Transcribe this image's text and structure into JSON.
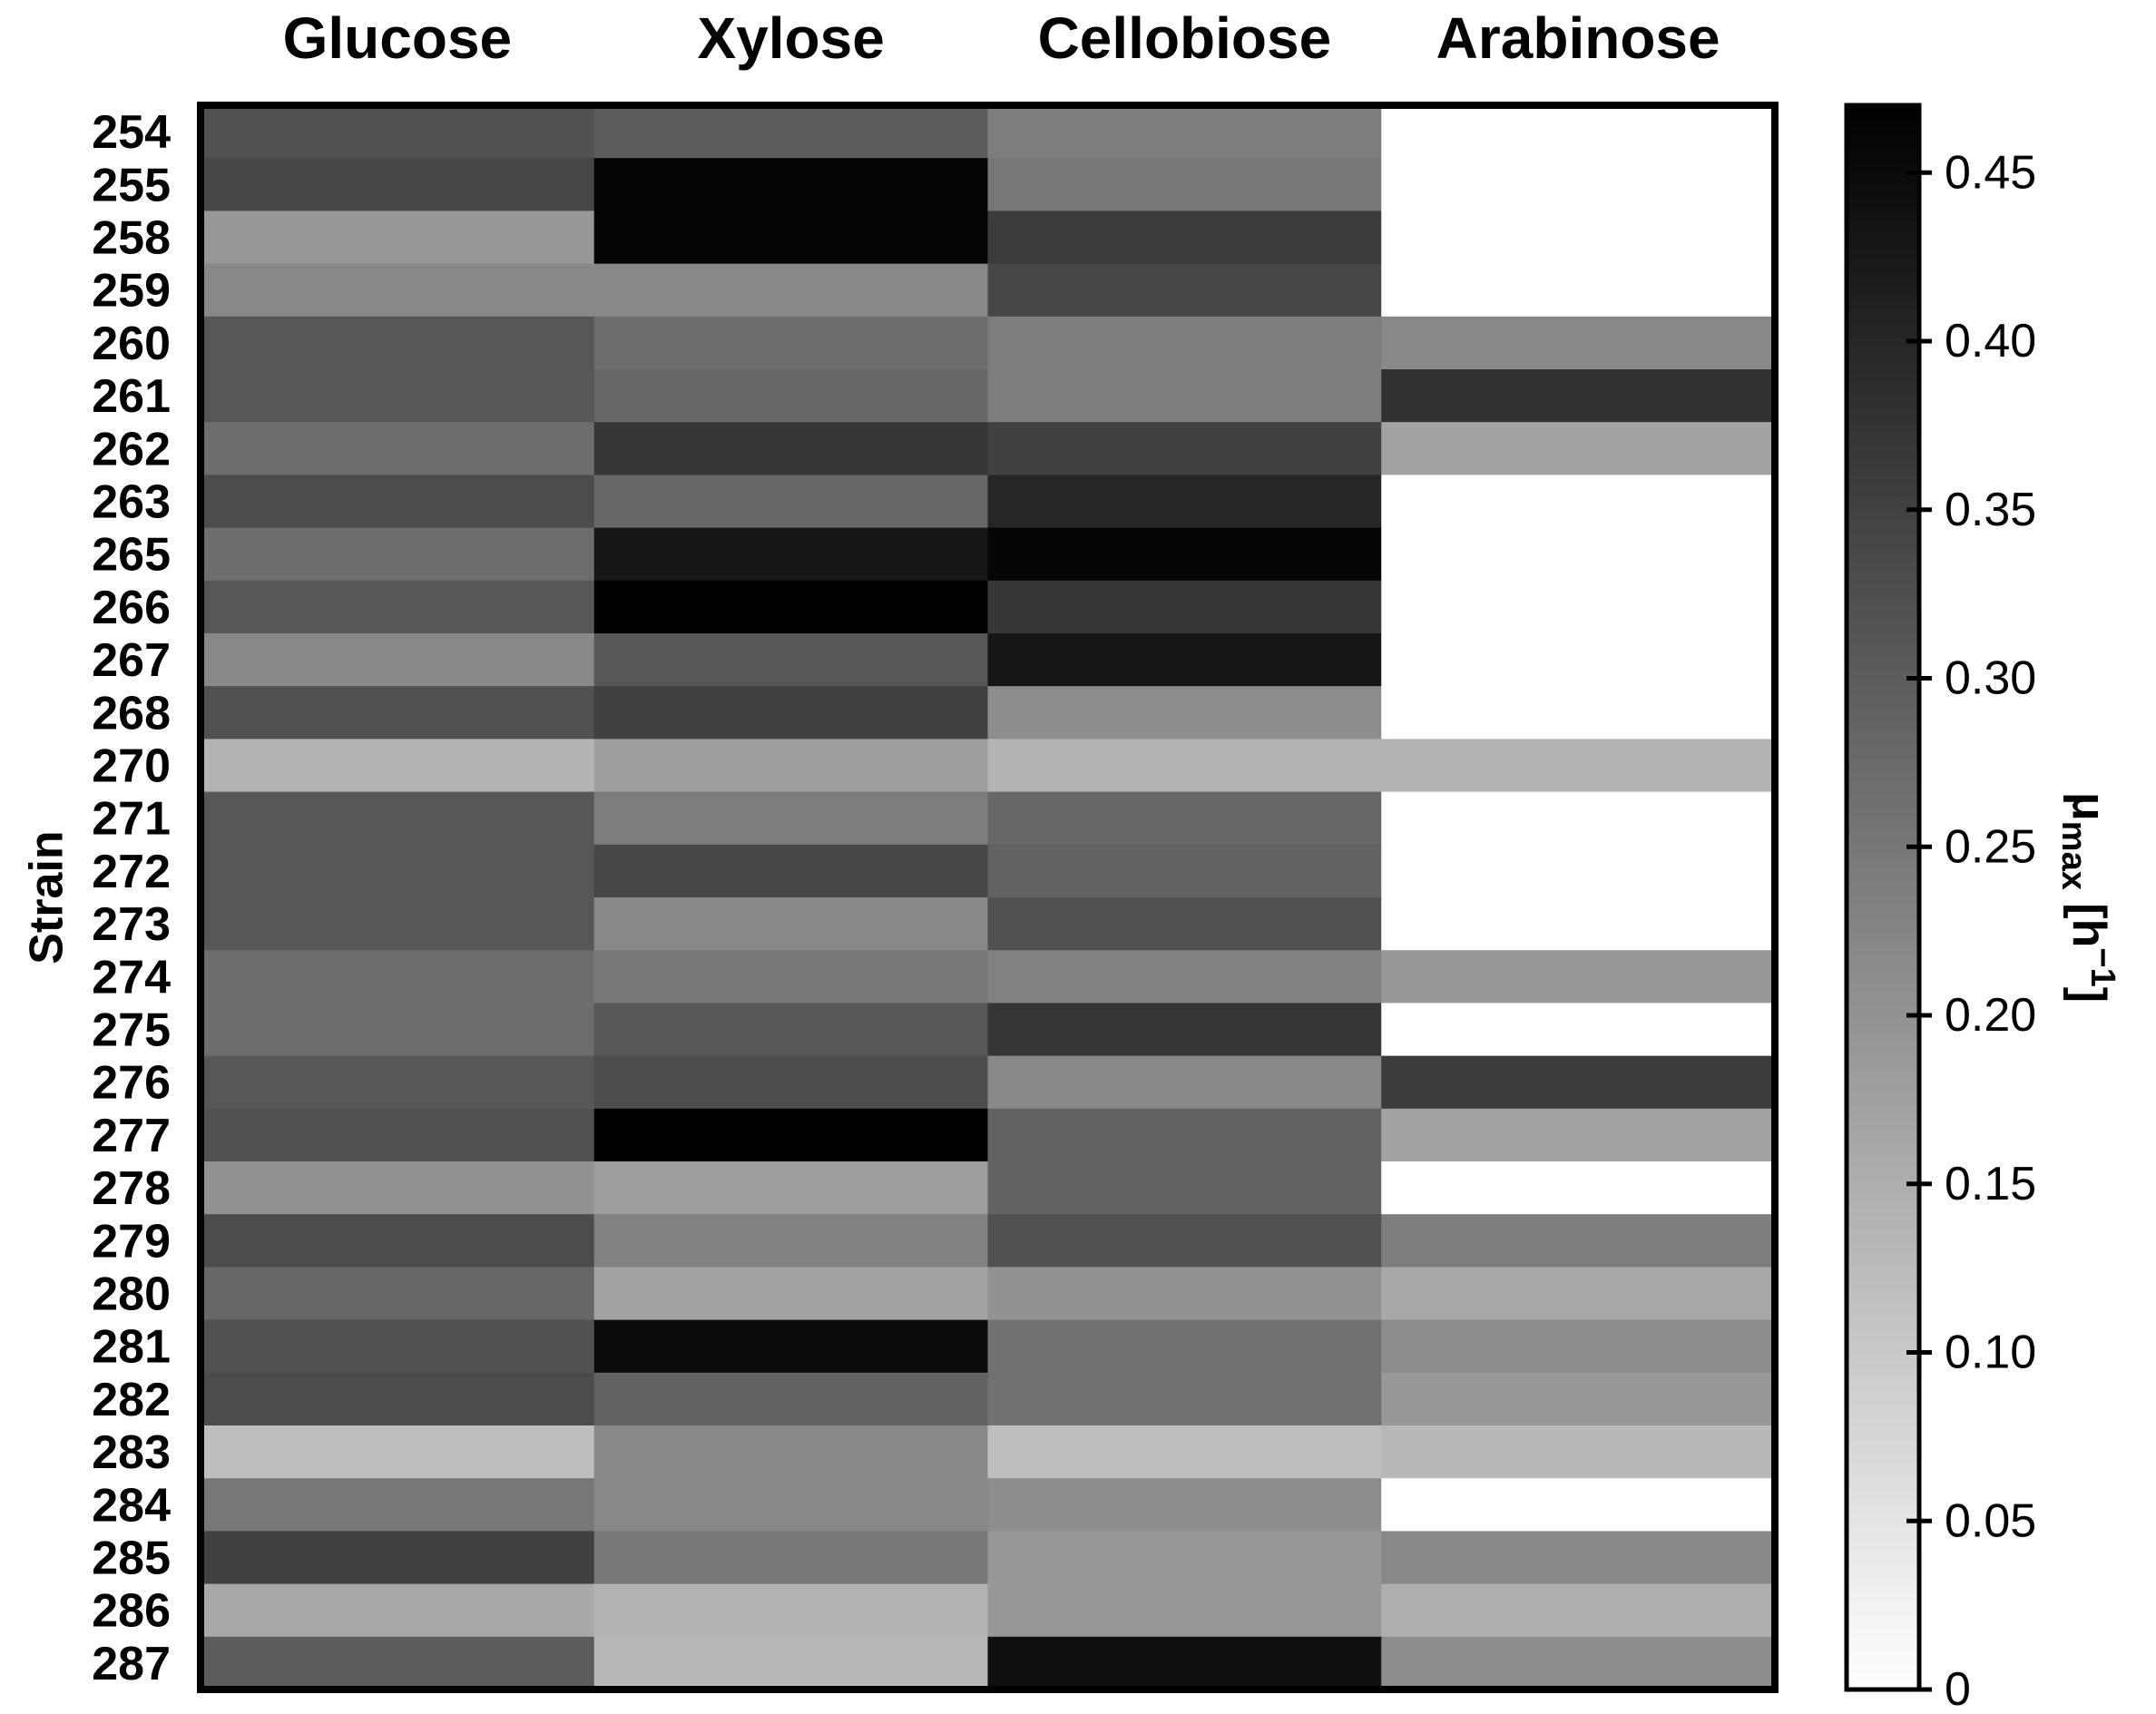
{
  "chart_data": {
    "type": "heatmap",
    "title": "",
    "xlabel": "",
    "ylabel": "Strain",
    "columns": [
      "Glucose",
      "Xylose",
      "Cellobiose",
      "Arabinose"
    ],
    "rows": [
      "254",
      "255",
      "258",
      "259",
      "260",
      "261",
      "262",
      "263",
      "265",
      "266",
      "267",
      "268",
      "270",
      "271",
      "272",
      "273",
      "274",
      "275",
      "276",
      "277",
      "278",
      "279",
      "280",
      "281",
      "282",
      "283",
      "284",
      "285",
      "286",
      "287"
    ],
    "values": [
      [
        0.32,
        0.3,
        0.24,
        0.0
      ],
      [
        0.34,
        0.46,
        0.25,
        0.0
      ],
      [
        0.19,
        0.46,
        0.36,
        0.0
      ],
      [
        0.22,
        0.22,
        0.34,
        0.0
      ],
      [
        0.31,
        0.27,
        0.24,
        0.22
      ],
      [
        0.31,
        0.28,
        0.24,
        0.38
      ],
      [
        0.27,
        0.37,
        0.35,
        0.17
      ],
      [
        0.33,
        0.28,
        0.4,
        0.0
      ],
      [
        0.27,
        0.43,
        0.46,
        0.0
      ],
      [
        0.31,
        0.47,
        0.37,
        0.0
      ],
      [
        0.22,
        0.31,
        0.43,
        0.0
      ],
      [
        0.32,
        0.35,
        0.21,
        0.0
      ],
      [
        0.14,
        0.18,
        0.14,
        0.14
      ],
      [
        0.31,
        0.24,
        0.28,
        0.0
      ],
      [
        0.31,
        0.34,
        0.29,
        0.0
      ],
      [
        0.31,
        0.22,
        0.32,
        0.0
      ],
      [
        0.27,
        0.25,
        0.23,
        0.19
      ],
      [
        0.27,
        0.31,
        0.37,
        0.0
      ],
      [
        0.31,
        0.33,
        0.22,
        0.36
      ],
      [
        0.32,
        0.47,
        0.29,
        0.17
      ],
      [
        0.2,
        0.18,
        0.29,
        0.0
      ],
      [
        0.33,
        0.23,
        0.32,
        0.24
      ],
      [
        0.28,
        0.17,
        0.2,
        0.16
      ],
      [
        0.32,
        0.45,
        0.26,
        0.21
      ],
      [
        0.33,
        0.29,
        0.26,
        0.19
      ],
      [
        0.12,
        0.22,
        0.12,
        0.13
      ],
      [
        0.25,
        0.22,
        0.21,
        0.0
      ],
      [
        0.35,
        0.25,
        0.19,
        0.22
      ],
      [
        0.16,
        0.14,
        0.19,
        0.15
      ],
      [
        0.3,
        0.13,
        0.44,
        0.21
      ]
    ],
    "colorbar": {
      "label_main": "μ",
      "label_sub": "max",
      "label_unit_open": " [h",
      "label_sup": "−1",
      "label_unit_close": "]",
      "min": 0,
      "max": 0.47,
      "ticks": [
        "0",
        "0.05",
        "0.10",
        "0.15",
        "0.20",
        "0.25",
        "0.30",
        "0.35",
        "0.40",
        "0.45"
      ],
      "colors": {
        "low": "#ffffff",
        "high": "#000000"
      }
    },
    "grid": false,
    "legend": "right colorbar"
  }
}
